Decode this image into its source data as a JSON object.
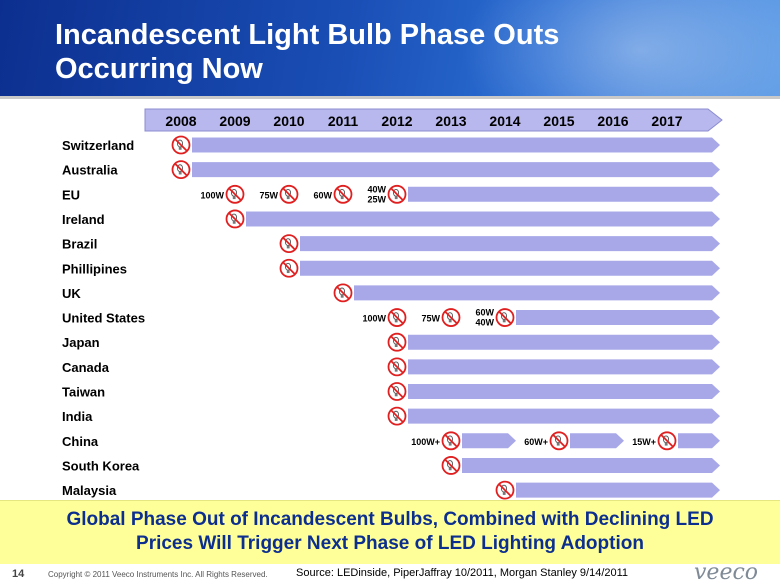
{
  "header": {
    "title_line1": "Incandescent Light Bulb Phase Outs",
    "title_line2": "Occurring Now"
  },
  "chart_data": {
    "type": "timeline",
    "years": [
      "2008",
      "2009",
      "2010",
      "2011",
      "2012",
      "2013",
      "2014",
      "2015",
      "2016",
      "2017"
    ],
    "rows": [
      {
        "country": "Switzerland",
        "start": 2008,
        "milestones": [
          {
            "year": 2008,
            "label": ""
          }
        ]
      },
      {
        "country": "Australia",
        "start": 2008,
        "milestones": [
          {
            "year": 2008,
            "label": ""
          }
        ]
      },
      {
        "country": "EU",
        "start": 2009,
        "milestones": [
          {
            "year": 2009,
            "label": "100W"
          },
          {
            "year": 2010,
            "label": "75W"
          },
          {
            "year": 2011,
            "label": "60W"
          },
          {
            "year": 2012,
            "label": "40W\n25W"
          }
        ]
      },
      {
        "country": "Ireland",
        "start": 2009,
        "milestones": [
          {
            "year": 2009,
            "label": ""
          }
        ]
      },
      {
        "country": "Brazil",
        "start": 2010,
        "milestones": [
          {
            "year": 2010,
            "label": ""
          }
        ]
      },
      {
        "country": "Phillipines",
        "start": 2010,
        "milestones": [
          {
            "year": 2010,
            "label": ""
          }
        ]
      },
      {
        "country": "UK",
        "start": 2011,
        "milestones": [
          {
            "year": 2011,
            "label": ""
          }
        ]
      },
      {
        "country": "United States",
        "start": 2012,
        "milestones": [
          {
            "year": 2012,
            "label": "100W"
          },
          {
            "year": 2013,
            "label": "75W"
          },
          {
            "year": 2014,
            "label": "60W\n40W"
          }
        ]
      },
      {
        "country": "Japan",
        "start": 2012,
        "milestones": [
          {
            "year": 2012,
            "label": ""
          }
        ]
      },
      {
        "country": "Canada",
        "start": 2012,
        "milestones": [
          {
            "year": 2012,
            "label": ""
          }
        ]
      },
      {
        "country": "Taiwan",
        "start": 2012,
        "milestones": [
          {
            "year": 2012,
            "label": ""
          }
        ]
      },
      {
        "country": "India",
        "start": 2012,
        "milestones": [
          {
            "year": 2012,
            "label": ""
          }
        ]
      },
      {
        "country": "China",
        "start": 2013,
        "milestones": [
          {
            "year": 2013,
            "label": "100W+"
          },
          {
            "year": 2015,
            "label": "60W+"
          },
          {
            "year": 2017,
            "label": "15W+"
          }
        ]
      },
      {
        "country": "South Korea",
        "start": 2013,
        "milestones": [
          {
            "year": 2013,
            "label": ""
          }
        ]
      },
      {
        "country": "Malaysia",
        "start": 2014,
        "milestones": [
          {
            "year": 2014,
            "label": ""
          }
        ]
      }
    ]
  },
  "banner": {
    "line1": "Global Phase Out of Incandescent Bulbs, Combined with Declining LED",
    "line2": "Prices Will Trigger Next Phase of LED Lighting Adoption"
  },
  "footer": {
    "page_number": "14",
    "copyright": "Copyright © 2011 Veeco Instruments Inc. All Rights Reserved.",
    "source": "Source: LEDinside, PiperJaffray 10/2011, Morgan Stanley  9/14/2011",
    "logo": "veeco"
  },
  "colors": {
    "bar": "#a8a8e8",
    "year_bar": "#b8b8ee",
    "ban_red": "#e02020",
    "title_blue": "#0c2f8f"
  }
}
